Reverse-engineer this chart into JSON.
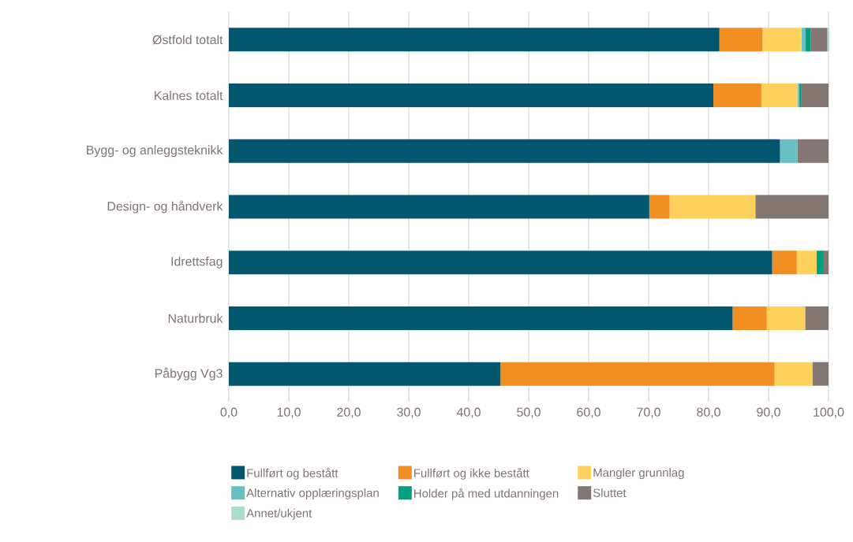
{
  "chart_data": {
    "type": "bar",
    "orientation": "horizontal",
    "stacked": true,
    "grid": "x",
    "legend": "bottom",
    "categories": [
      "Østfold totalt",
      "Kalnes totalt",
      "Bygg- og anleggsteknikk",
      "Design- og håndverk",
      "Idrettsfag",
      "Naturbruk",
      "Påbygg Vg3"
    ],
    "xlim": [
      0,
      100
    ],
    "xticks": [
      {
        "value": 0,
        "label": "0,0"
      },
      {
        "value": 10,
        "label": "10,0"
      },
      {
        "value": 20,
        "label": "20,0"
      },
      {
        "value": 30,
        "label": "30,0"
      },
      {
        "value": 40,
        "label": "40,0"
      },
      {
        "value": 50,
        "label": "50,0"
      },
      {
        "value": 60,
        "label": "60,0"
      },
      {
        "value": 70,
        "label": "70,0"
      },
      {
        "value": 80,
        "label": "80,0"
      },
      {
        "value": 90,
        "label": "90,0"
      },
      {
        "value": 100,
        "label": "100,0"
      }
    ],
    "series": [
      {
        "name": "Fullført og bestått",
        "color": "#02566e",
        "values": [
          81.8,
          80.8,
          91.9,
          70.1,
          90.6,
          84.0,
          45.3
        ]
      },
      {
        "name": "Fullført og ikke bestått",
        "color": "#f28f22",
        "values": [
          7.2,
          8.0,
          0,
          3.4,
          4.1,
          5.7,
          45.7
        ]
      },
      {
        "name": "Mangler grunnlag",
        "color": "#fed15c",
        "values": [
          6.5,
          6.0,
          0,
          14.3,
          3.3,
          6.4,
          6.3
        ]
      },
      {
        "name": "Alternativ opplæringsplan",
        "color": "#67c1c4",
        "values": [
          0.6,
          0.3,
          2.9,
          0,
          0,
          0,
          0
        ]
      },
      {
        "name": "Holder på med utdanningen",
        "color": "#00a080",
        "values": [
          0.9,
          0.3,
          0,
          0,
          1.2,
          0,
          0
        ]
      },
      {
        "name": "Sluttet",
        "color": "#847671",
        "values": [
          2.8,
          4.6,
          5.2,
          12.2,
          0.8,
          3.9,
          2.7
        ]
      },
      {
        "name": "Annet/ukjent",
        "color": "#abdcd0",
        "values": [
          0.3,
          0,
          0,
          0,
          0,
          0,
          0
        ]
      }
    ]
  }
}
